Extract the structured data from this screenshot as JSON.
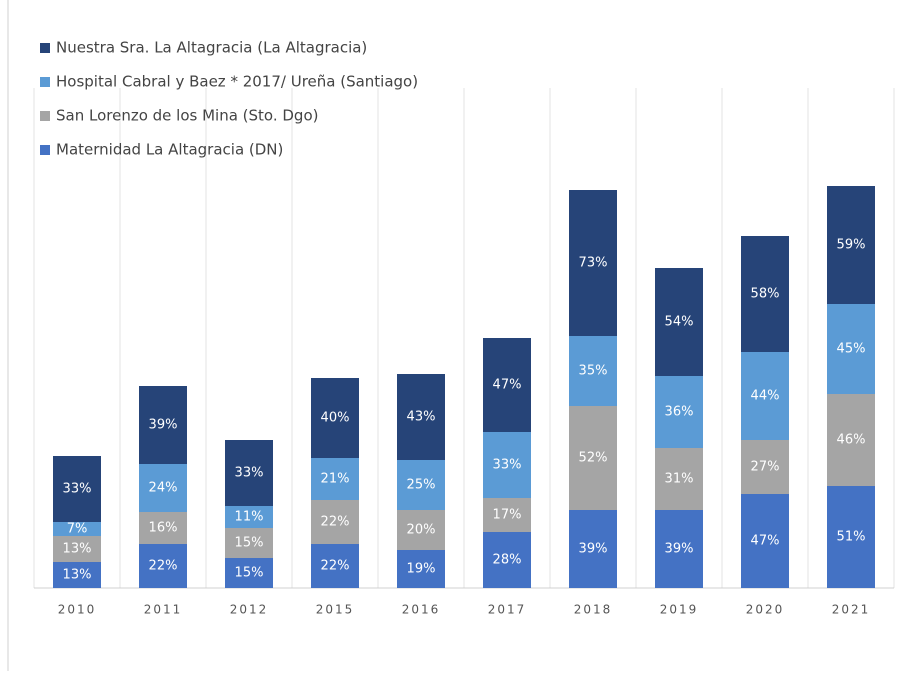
{
  "chart_data": {
    "type": "stacked_bar",
    "categories": [
      "2010",
      "2011",
      "2012",
      "2015",
      "2016",
      "2017",
      "2018",
      "2019",
      "2020",
      "2021"
    ],
    "series": [
      {
        "name": "Nuestra Sra. La Altagracia (La Altagracia)",
        "color": "#264478",
        "values": [
          33,
          39,
          33,
          40,
          43,
          47,
          73,
          54,
          58,
          59
        ],
        "value_labels": [
          "33%",
          "39%",
          "33%",
          "40%",
          "43%",
          "47%",
          "73%",
          "54%",
          "58%",
          "59%"
        ]
      },
      {
        "name": "Hospital Cabral y Baez * 2017/ Ureña (Santiago)",
        "color": "#5b9bd5",
        "values": [
          7,
          24,
          11,
          21,
          25,
          33,
          35,
          36,
          44,
          45
        ],
        "value_labels": [
          "7%",
          "24%",
          "11%",
          "21%",
          "25%",
          "33%",
          "35%",
          "36%",
          "44%",
          "45%"
        ]
      },
      {
        "name": "San Lorenzo de los Mina (Sto. Dgo)",
        "color": "#a5a5a5",
        "values": [
          13,
          16,
          15,
          22,
          20,
          17,
          52,
          31,
          27,
          46
        ],
        "value_labels": [
          "13%",
          "16%",
          "15%",
          "22%",
          "20%",
          "17%",
          "52%",
          "31%",
          "27%",
          "46%"
        ]
      },
      {
        "name": "Maternidad La Altagracia (DN)",
        "color": "#4472c4",
        "values": [
          13,
          22,
          15,
          22,
          19,
          28,
          39,
          39,
          47,
          51
        ],
        "value_labels": [
          "13%",
          "22%",
          "15%",
          "22%",
          "19%",
          "28%",
          "39%",
          "39%",
          "47%",
          "51%"
        ]
      }
    ],
    "legend": "top-left"
  }
}
